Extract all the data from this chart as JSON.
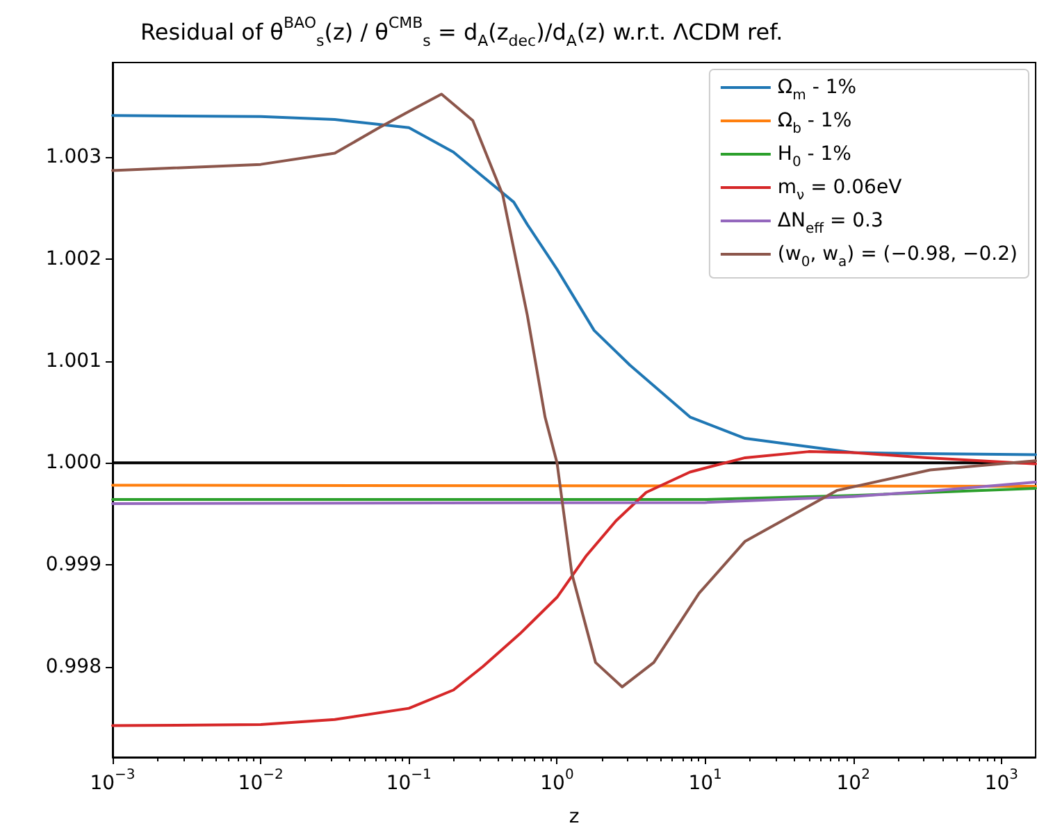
{
  "chart_data": {
    "type": "line",
    "title": "Residual of θ$^{BAO}$$_{s}$(z) / θ$^{CMB}$$_{s}$ = d$_{A}$(z$_{dec}$)/d$_{A}$(z) w.r.t. ΛCDM ref.",
    "xlabel": "z",
    "log": "x",
    "xlim": [
      0.001,
      1700
    ],
    "xticks": [
      {
        "value": 0.001,
        "label": "10$^{−3}$"
      },
      {
        "value": 0.01,
        "label": "10$^{−2}$"
      },
      {
        "value": 0.1,
        "label": "10$^{−1}$"
      },
      {
        "value": 1,
        "label": "10$^{0}$"
      },
      {
        "value": 10,
        "label": "10$^{1}$"
      },
      {
        "value": 100,
        "label": "10$^{2}$"
      },
      {
        "value": 1000,
        "label": "10$^{3}$"
      }
    ],
    "ylim": [
      0.99711,
      1.00393
    ],
    "yticks": [
      {
        "value": 0.998,
        "label": "0.998"
      },
      {
        "value": 0.999,
        "label": "0.999"
      },
      {
        "value": 1,
        "label": "1.000"
      },
      {
        "value": 1.001,
        "label": "1.001"
      },
      {
        "value": 1.002,
        "label": "1.002"
      },
      {
        "value": 1.003,
        "label": "1.003"
      }
    ],
    "grid": false,
    "legend": "top right",
    "marker": "none",
    "line_style": "solid",
    "ref_lines": [
      {
        "axis": "y",
        "value": 1,
        "color": "#000000"
      }
    ],
    "series": [
      {
        "name": "Ω$_{m}$ - 1%",
        "color": "#1f77b4",
        "x": [
          0.001,
          0.01,
          0.0316,
          0.1,
          0.2,
          0.316,
          0.51,
          0.63,
          1,
          1.78,
          3.1,
          7.9,
          18.6,
          38,
          100,
          300,
          1700
        ],
        "values": [
          1.00341,
          1.0034,
          1.00337,
          1.00329,
          1.00305,
          1.00281,
          1.00256,
          1.00234,
          1.0019,
          1.0013,
          1.00096,
          1.00045,
          1.00024,
          1.00018,
          1.0001,
          1.00009,
          1.00008
        ]
      },
      {
        "name": "Ω$_{b}$ - 1%",
        "color": "#ff7f0e",
        "x": [
          0.001,
          1700
        ],
        "values": [
          0.99978,
          0.99977
        ]
      },
      {
        "name": "H$_{0}$ - 1%",
        "color": "#2ca02c",
        "x": [
          0.001,
          10,
          100,
          1700
        ],
        "values": [
          0.99964,
          0.99964,
          0.99968,
          0.99975
        ]
      },
      {
        "name": "m$_{ν}$ = 0.06eV",
        "color": "#d62728",
        "x": [
          0.001,
          0.01,
          0.0316,
          0.1,
          0.2,
          0.316,
          0.56,
          1,
          1.58,
          2.5,
          4,
          7.9,
          18.6,
          50,
          100,
          316,
          1700
        ],
        "values": [
          0.99742,
          0.99743,
          0.99748,
          0.99759,
          0.99777,
          0.998,
          0.99832,
          0.99868,
          0.99909,
          0.99943,
          0.99971,
          0.99991,
          1.00005,
          1.00011,
          1.0001,
          1.00005,
          0.99999
        ]
      },
      {
        "name": "ΔN$_{eff}$ = 0.3",
        "color": "#9467bd",
        "x": [
          0.001,
          10,
          100,
          316,
          1700
        ],
        "values": [
          0.9996,
          0.99961,
          0.99967,
          0.99972,
          0.99981
        ]
      },
      {
        "name": "(w$_{0}$, w$_{a}$) = (−0.98, −0.2)",
        "color": "#8c564b",
        "x": [
          0.001,
          0.01,
          0.0316,
          0.063,
          0.1,
          0.166,
          0.27,
          0.43,
          0.63,
          0.83,
          1,
          1.26,
          1.82,
          2.75,
          4.5,
          9.1,
          18.6,
          78,
          330,
          1700
        ],
        "values": [
          1.00287,
          1.00293,
          1.00304,
          1.00329,
          1.00345,
          1.00362,
          1.00336,
          1.00263,
          1.00145,
          1.00045,
          1.0,
          0.99891,
          0.99804,
          0.9978,
          0.99804,
          0.99872,
          0.99923,
          0.99973,
          0.99993,
          1.00002
        ]
      }
    ]
  }
}
